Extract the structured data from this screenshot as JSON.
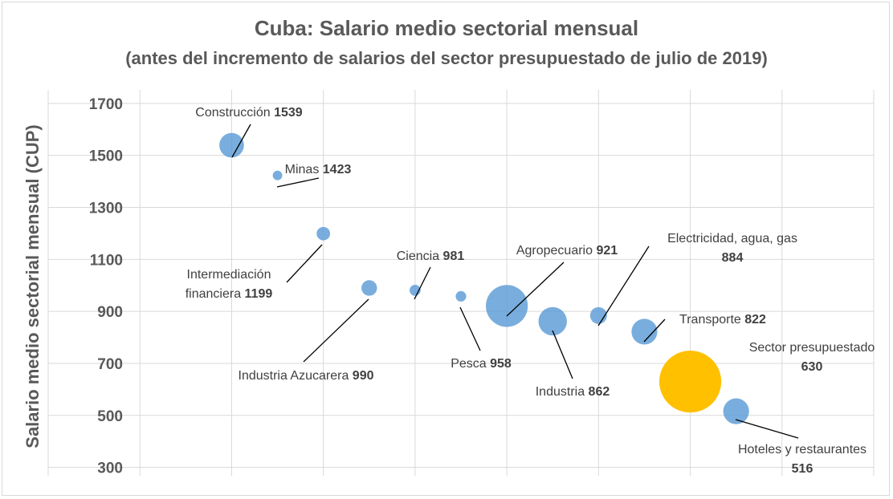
{
  "chart_data": {
    "type": "bubble",
    "title": "Cuba: Salario medio sectorial mensual",
    "subtitle": "(antes del incremento de salarios del sector presupuestado de julio de 2019)",
    "ylabel": "Salario medio sectorial mensual (CUP)",
    "xlabel": "",
    "ylim": [
      300,
      1700
    ],
    "yticks": [
      300,
      500,
      700,
      900,
      1100,
      1300,
      1500,
      1700
    ],
    "xlim": [
      0,
      9
    ],
    "grid": true,
    "colors": {
      "default": "#5b9bd5",
      "highlight": "#ffc000"
    },
    "points": [
      {
        "label": "Construcción",
        "value_text": "1539",
        "x": 2.0,
        "y": 1539,
        "size": 3.0,
        "color": "default"
      },
      {
        "label": "Minas",
        "value_text": "1423",
        "x": 2.5,
        "y": 1423,
        "size": 0.45,
        "color": "default"
      },
      {
        "label": "Intermediación financiera",
        "label_lines": [
          "Intermediación",
          "financiera"
        ],
        "value_text": "1199",
        "x": 3.0,
        "y": 1199,
        "size": 0.9,
        "color": "default"
      },
      {
        "label": "Industria Azucarera",
        "value_text": "990",
        "x": 3.5,
        "y": 990,
        "size": 1.2,
        "color": "default"
      },
      {
        "label": "Ciencia",
        "value_text": "981",
        "x": 4.0,
        "y": 981,
        "size": 0.6,
        "color": "default"
      },
      {
        "label": "Pesca",
        "value_text": "958",
        "x": 4.5,
        "y": 958,
        "size": 0.55,
        "color": "default"
      },
      {
        "label": "Agropecuario",
        "value_text": "921",
        "x": 5.0,
        "y": 921,
        "size": 8.7,
        "color": "default"
      },
      {
        "label": "Industria",
        "value_text": "862",
        "x": 5.5,
        "y": 862,
        "size": 4.0,
        "color": "default"
      },
      {
        "label": "Electricidad, agua, gas",
        "value_text": "884",
        "x": 6.0,
        "y": 884,
        "size": 1.4,
        "color": "default"
      },
      {
        "label": "Transporte",
        "value_text": "822",
        "x": 6.5,
        "y": 822,
        "size": 3.3,
        "color": "default"
      },
      {
        "label": "Sector presupuestado",
        "value_text": "630",
        "x": 7.0,
        "y": 630,
        "size": 19.0,
        "color": "highlight"
      },
      {
        "label": "Hoteles y restaurantes",
        "value_text": "516",
        "x": 7.5,
        "y": 516,
        "size": 3.3,
        "color": "default"
      }
    ]
  }
}
